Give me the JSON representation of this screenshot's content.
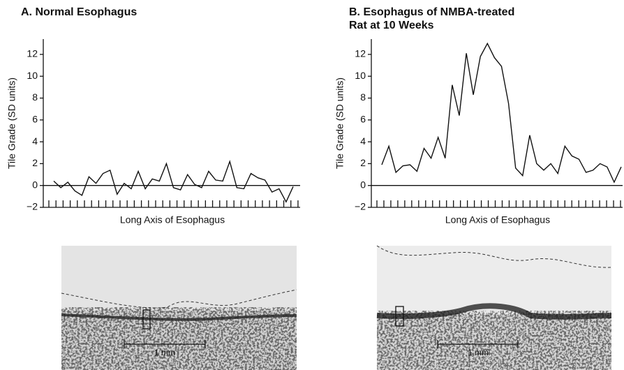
{
  "chart_data": [
    {
      "type": "line",
      "title": [
        "A.  Normal Esophagus"
      ],
      "ylabel": "Tile Grade (SD units)",
      "xlabel": "Long Axis of Esophagus",
      "values": [
        0.4,
        -0.2,
        0.3,
        -0.5,
        -0.9,
        0.8,
        0.2,
        1.1,
        1.4,
        -0.8,
        0.2,
        -0.3,
        1.3,
        -0.3,
        0.6,
        0.4,
        2.0,
        -0.2,
        -0.4,
        1.0,
        0.1,
        -0.2,
        1.3,
        0.5,
        0.4,
        2.2,
        -0.2,
        -0.3,
        1.1,
        0.7,
        0.5,
        -0.6,
        -0.3,
        -1.5,
        -0.1
      ],
      "color": "#111111",
      "ylim": [
        -2,
        13.4
      ],
      "yticks": [
        {
          "value": -2,
          "label": "−2"
        },
        0,
        2,
        4,
        6,
        8,
        10,
        12
      ]
    },
    {
      "type": "line",
      "title": [
        "B.  Esophagus of NMBA-treated",
        "Rat at 10 Weeks"
      ],
      "ylabel": "Tile Grade (SD units)",
      "xlabel": "Long Axis of Esophagus",
      "values": [
        1.9,
        3.6,
        1.2,
        1.8,
        1.9,
        1.3,
        3.4,
        2.5,
        4.4,
        2.5,
        9.2,
        6.4,
        12.1,
        8.3,
        11.8,
        13.0,
        11.7,
        10.9,
        7.5,
        1.6,
        0.9,
        4.6,
        2.0,
        1.4,
        2.0,
        1.1,
        3.6,
        2.7,
        2.4,
        1.2,
        1.4,
        2.0,
        1.7,
        0.3,
        1.7
      ],
      "color": "#111111",
      "ylim": [
        -2,
        13.4
      ],
      "yticks": [
        {
          "value": -2,
          "label": "−2"
        },
        0,
        2,
        4,
        6,
        8,
        10,
        12
      ]
    }
  ],
  "micrographs": [
    {
      "scale_label": "1 mm"
    },
    {
      "scale_label": "1 mm"
    }
  ]
}
